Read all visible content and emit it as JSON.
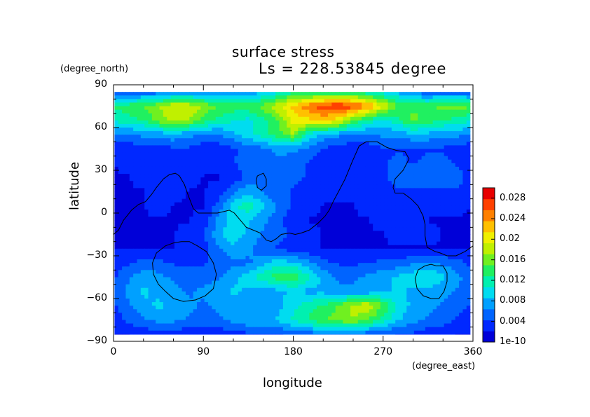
{
  "title": "surface stress",
  "subtitle": "Ls = 228.53845 degree",
  "chart_data": {
    "type": "heatmap",
    "title": "surface stress",
    "subtitle": "Ls = 228.53845 degree",
    "xlabel": "longitude",
    "ylabel": "latitude",
    "x_unit": "(degree_east)",
    "y_unit": "(degree_north)",
    "xlim": [
      0,
      360
    ],
    "ylim": [
      -90,
      90
    ],
    "x_ticks": [
      "0",
      "90",
      "180",
      "270",
      "360"
    ],
    "y_ticks": [
      "90",
      "60",
      "30",
      "0",
      "−30",
      "−60",
      "−90"
    ],
    "colorbar": {
      "ticks": [
        "0.028",
        "0.024",
        "0.02",
        "0.016",
        "0.012",
        "0.008",
        "0.004",
        "1e-10"
      ],
      "min": 0,
      "max": 0.03,
      "colors": [
        "#0000d8",
        "#0028ff",
        "#0064ff",
        "#00a0ff",
        "#00dcf0",
        "#00f0b0",
        "#20f060",
        "#70f020",
        "#c0f000",
        "#f0f000",
        "#ffc000",
        "#ff8000",
        "#ff4000",
        "#e80000"
      ]
    },
    "grid_lat": [
      85,
      75,
      65,
      55,
      45,
      35,
      25,
      15,
      5,
      -5,
      -15,
      -25,
      -35,
      -45,
      -55,
      -65,
      -75,
      -85
    ],
    "grid_lon": [
      0,
      15,
      30,
      45,
      60,
      75,
      90,
      105,
      120,
      135,
      150,
      165,
      180,
      195,
      210,
      225,
      240,
      255,
      270,
      285,
      300,
      315,
      330,
      345,
      360
    ],
    "field": [
      [
        0.004,
        0.004,
        0.005,
        0.005,
        0.006,
        0.006,
        0.006,
        0.006,
        0.006,
        0.007,
        0.008,
        0.01,
        0.012,
        0.012,
        0.012,
        0.012,
        0.012,
        0.011,
        0.01,
        0.008,
        0.006,
        0.005,
        0.005,
        0.005,
        0.004
      ],
      [
        0.013,
        0.014,
        0.015,
        0.017,
        0.019,
        0.019,
        0.017,
        0.015,
        0.014,
        0.014,
        0.016,
        0.019,
        0.022,
        0.025,
        0.027,
        0.028,
        0.027,
        0.024,
        0.019,
        0.015,
        0.014,
        0.014,
        0.016,
        0.016,
        0.015
      ],
      [
        0.011,
        0.012,
        0.013,
        0.016,
        0.018,
        0.017,
        0.014,
        0.012,
        0.011,
        0.01,
        0.012,
        0.015,
        0.02,
        0.021,
        0.022,
        0.02,
        0.015,
        0.012,
        0.01,
        0.012,
        0.016,
        0.014,
        0.013,
        0.012,
        0.011
      ],
      [
        0.006,
        0.006,
        0.007,
        0.007,
        0.008,
        0.007,
        0.006,
        0.006,
        0.008,
        0.01,
        0.012,
        0.014,
        0.017,
        0.01,
        0.008,
        0.007,
        0.006,
        0.006,
        0.007,
        0.007,
        0.008,
        0.008,
        0.007,
        0.007,
        0.006
      ],
      [
        0.003,
        0.003,
        0.003,
        0.003,
        0.004,
        0.004,
        0.003,
        0.003,
        0.004,
        0.005,
        0.006,
        0.007,
        0.007,
        0.006,
        0.004,
        0.003,
        0.003,
        0.003,
        0.004,
        0.004,
        0.004,
        0.004,
        0.004,
        0.003,
        0.003
      ],
      [
        0.002,
        0.003,
        0.003,
        0.004,
        0.004,
        0.003,
        0.003,
        0.003,
        0.004,
        0.006,
        0.005,
        0.006,
        0.005,
        0.004,
        0.003,
        0.003,
        0.004,
        0.003,
        0.004,
        0.005,
        0.004,
        0.005,
        0.005,
        0.004,
        0.003
      ],
      [
        0.002,
        0.002,
        0.003,
        0.003,
        0.003,
        0.003,
        0.002,
        0.002,
        0.003,
        0.005,
        0.006,
        0.006,
        0.005,
        0.004,
        0.003,
        0.003,
        0.004,
        0.004,
        0.004,
        0.005,
        0.006,
        0.006,
        0.006,
        0.005,
        0.003
      ],
      [
        0.002,
        0.002,
        0.002,
        0.003,
        0.003,
        0.002,
        0.002,
        0.003,
        0.006,
        0.008,
        0.006,
        0.005,
        0.004,
        0.003,
        0.003,
        0.003,
        0.003,
        0.003,
        0.003,
        0.004,
        0.004,
        0.004,
        0.004,
        0.004,
        0.003
      ],
      [
        0.002,
        0.002,
        0.002,
        0.003,
        0.002,
        0.002,
        0.002,
        0.005,
        0.01,
        0.012,
        0.009,
        0.006,
        0.004,
        0.003,
        0.002,
        0.002,
        0.002,
        0.003,
        0.003,
        0.003,
        0.003,
        0.003,
        0.003,
        0.003,
        0.002
      ],
      [
        0.001,
        0.002,
        0.002,
        0.002,
        0.002,
        0.002,
        0.003,
        0.007,
        0.01,
        0.009,
        0.007,
        0.005,
        0.003,
        0.002,
        0.002,
        0.002,
        0.002,
        0.002,
        0.003,
        0.003,
        0.003,
        0.002,
        0.002,
        0.002,
        0.001
      ],
      [
        0.002,
        0.002,
        0.002,
        0.002,
        0.002,
        0.003,
        0.004,
        0.008,
        0.01,
        0.008,
        0.006,
        0.005,
        0.004,
        0.003,
        0.002,
        0.002,
        0.002,
        0.002,
        0.002,
        0.003,
        0.003,
        0.003,
        0.002,
        0.002,
        0.002
      ],
      [
        0.002,
        0.002,
        0.002,
        0.002,
        0.002,
        0.003,
        0.003,
        0.006,
        0.008,
        0.007,
        0.005,
        0.004,
        0.003,
        0.003,
        0.002,
        0.002,
        0.002,
        0.002,
        0.002,
        0.002,
        0.002,
        0.002,
        0.002,
        0.002,
        0.002
      ],
      [
        0.003,
        0.004,
        0.005,
        0.005,
        0.004,
        0.004,
        0.004,
        0.005,
        0.006,
        0.006,
        0.008,
        0.01,
        0.009,
        0.007,
        0.005,
        0.004,
        0.004,
        0.004,
        0.005,
        0.005,
        0.006,
        0.006,
        0.006,
        0.005,
        0.003
      ],
      [
        0.004,
        0.006,
        0.008,
        0.007,
        0.006,
        0.005,
        0.005,
        0.006,
        0.008,
        0.01,
        0.012,
        0.014,
        0.015,
        0.011,
        0.008,
        0.006,
        0.006,
        0.007,
        0.008,
        0.009,
        0.01,
        0.011,
        0.009,
        0.007,
        0.005
      ],
      [
        0.005,
        0.007,
        0.009,
        0.008,
        0.007,
        0.006,
        0.007,
        0.008,
        0.009,
        0.008,
        0.007,
        0.008,
        0.009,
        0.008,
        0.008,
        0.007,
        0.007,
        0.007,
        0.008,
        0.009,
        0.008,
        0.008,
        0.007,
        0.006,
        0.005
      ],
      [
        0.004,
        0.006,
        0.008,
        0.009,
        0.008,
        0.007,
        0.006,
        0.007,
        0.008,
        0.008,
        0.007,
        0.008,
        0.01,
        0.012,
        0.013,
        0.015,
        0.018,
        0.019,
        0.015,
        0.01,
        0.008,
        0.007,
        0.006,
        0.005,
        0.004
      ],
      [
        0.003,
        0.005,
        0.006,
        0.007,
        0.007,
        0.006,
        0.005,
        0.006,
        0.007,
        0.008,
        0.008,
        0.009,
        0.011,
        0.013,
        0.015,
        0.016,
        0.017,
        0.015,
        0.012,
        0.009,
        0.007,
        0.006,
        0.005,
        0.004,
        0.003
      ],
      [
        0.002,
        0.002,
        0.003,
        0.003,
        0.003,
        0.003,
        0.003,
        0.003,
        0.003,
        0.004,
        0.004,
        0.004,
        0.005,
        0.005,
        0.006,
        0.006,
        0.006,
        0.005,
        0.005,
        0.004,
        0.004,
        0.003,
        0.003,
        0.002,
        0.002
      ]
    ],
    "contours": [
      [
        [
          0,
          -15
        ],
        [
          5,
          -12
        ],
        [
          10,
          -5
        ],
        [
          18,
          2
        ],
        [
          25,
          6
        ],
        [
          32,
          8
        ],
        [
          38,
          13
        ],
        [
          43,
          18
        ],
        [
          50,
          24
        ],
        [
          56,
          27
        ],
        [
          62,
          28
        ],
        [
          66,
          26
        ],
        [
          71,
          20
        ],
        [
          75,
          12
        ],
        [
          80,
          3
        ],
        [
          85,
          0
        ],
        [
          95,
          0
        ],
        [
          104,
          0
        ],
        [
          110,
          1
        ],
        [
          116,
          2
        ],
        [
          121,
          0
        ],
        [
          127,
          -5
        ],
        [
          133,
          -10
        ],
        [
          140,
          -12
        ],
        [
          147,
          -14
        ],
        [
          153,
          -19
        ],
        [
          158,
          -20
        ],
        [
          163,
          -18
        ],
        [
          168,
          -15
        ],
        [
          176,
          -14
        ],
        [
          182,
          -15
        ],
        [
          188,
          -14
        ],
        [
          196,
          -12
        ],
        [
          205,
          -7
        ],
        [
          212,
          -2
        ],
        [
          216,
          2
        ],
        [
          220,
          8
        ],
        [
          226,
          16
        ],
        [
          232,
          24
        ],
        [
          239,
          36
        ],
        [
          246,
          47
        ],
        [
          253,
          50
        ],
        [
          264,
          50
        ],
        [
          274,
          46
        ],
        [
          283,
          44
        ],
        [
          292,
          43
        ],
        [
          296,
          38
        ],
        [
          290,
          30
        ],
        [
          282,
          24
        ],
        [
          280,
          18
        ],
        [
          282,
          14
        ],
        [
          290,
          14
        ],
        [
          298,
          10
        ],
        [
          305,
          5
        ],
        [
          310,
          -2
        ],
        [
          312,
          -8
        ],
        [
          312,
          -16
        ],
        [
          314,
          -24
        ],
        [
          322,
          -27
        ],
        [
          327,
          -28
        ],
        [
          334,
          -30
        ],
        [
          343,
          -30
        ],
        [
          352,
          -27
        ],
        [
          358,
          -24
        ],
        [
          360,
          -23
        ]
      ],
      [
        [
          68,
          -20
        ],
        [
          76,
          -20
        ],
        [
          84,
          -23
        ],
        [
          93,
          -27
        ],
        [
          100,
          -35
        ],
        [
          103,
          -43
        ],
        [
          100,
          -53
        ],
        [
          92,
          -58
        ],
        [
          82,
          -61
        ],
        [
          70,
          -62
        ],
        [
          60,
          -60
        ],
        [
          52,
          -55
        ],
        [
          45,
          -50
        ],
        [
          40,
          -43
        ],
        [
          39,
          -35
        ],
        [
          43,
          -28
        ],
        [
          52,
          -23
        ],
        [
          60,
          -21
        ],
        [
          68,
          -20
        ]
      ],
      [
        [
          323,
          -37
        ],
        [
          330,
          -37
        ],
        [
          334,
          -42
        ],
        [
          334,
          -48
        ],
        [
          331,
          -55
        ],
        [
          326,
          -60
        ],
        [
          318,
          -60
        ],
        [
          310,
          -58
        ],
        [
          304,
          -53
        ],
        [
          302,
          -46
        ],
        [
          305,
          -40
        ],
        [
          312,
          -37
        ],
        [
          318,
          -36
        ],
        [
          323,
          -37
        ]
      ],
      [
        [
          144,
          26
        ],
        [
          150,
          28
        ],
        [
          153,
          24
        ],
        [
          153,
          19
        ],
        [
          148,
          16
        ],
        [
          144,
          18
        ],
        [
          143,
          23
        ],
        [
          144,
          26
        ]
      ]
    ]
  }
}
